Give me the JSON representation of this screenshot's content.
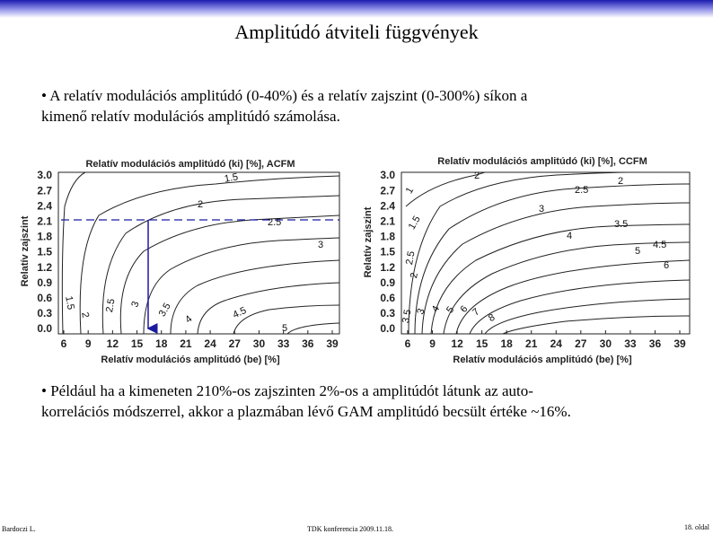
{
  "header": {
    "title": "Amplitúdó átviteli függvények"
  },
  "bullets": [
    [
      "• A relatív modulációs amplitúdó (0-40%) és a relatív zajszint (0-300%) síkon a",
      "kimenő relatív modulációs amplitúdó számolása."
    ],
    [
      "• Például ha a kimeneten 210%-os zajszinten 2%-os a amplitúdót látunk az auto-",
      "korrelációs módszerrel, akkor a plazmában lévő GAM amplitúdó becsült értéke ~16%."
    ]
  ],
  "plots": [
    {
      "title": "Relatív modulációs amplitúdó (ki) [%], ACFM",
      "x_label": "Relatív modulációs amplitúdó (be) [%]",
      "y_label": "Relatív zajszint",
      "xticks": [
        "6",
        "9",
        "12",
        "15",
        "18",
        "21",
        "24",
        "27",
        "30",
        "33",
        "36",
        "39"
      ],
      "yticks": [
        "0.0",
        "0.3",
        "0.6",
        "0.9",
        "1.2",
        "1.5",
        "1.8",
        "2.1",
        "2.4",
        "2.7",
        "3.0"
      ],
      "contour_labels": [
        "1.5",
        "2",
        "2.5",
        "3",
        "1.5",
        "2",
        "2.5",
        "3",
        "3.5",
        "4",
        "4.5",
        "5"
      ]
    },
    {
      "title": "Relatív modulációs amplitúdó (ki) [%], CCFM",
      "x_label": "Relatív modulációs amplitúdó (be) [%]",
      "y_label": "Relatív zajszint",
      "xticks": [
        "6",
        "9",
        "12",
        "15",
        "18",
        "21",
        "24",
        "27",
        "30",
        "33",
        "36",
        "39"
      ],
      "yticks": [
        "0.0",
        "0.3",
        "0.6",
        "0.9",
        "1.2",
        "1.5",
        "1.8",
        "2.1",
        "2.4",
        "2.7",
        "3.0"
      ],
      "contour_labels": [
        "2",
        "1",
        "2.5",
        "2",
        "3",
        "1.5",
        "3.5",
        "4",
        "4.5",
        "5",
        "6",
        "2.5",
        "2",
        "3.5",
        "3",
        "4",
        "5",
        "6",
        "7",
        "8"
      ]
    }
  ],
  "footer": {
    "author": "Bardoczi L.",
    "event": "TDK konferencia 2009.11.18.",
    "page": "18. oldal"
  }
}
